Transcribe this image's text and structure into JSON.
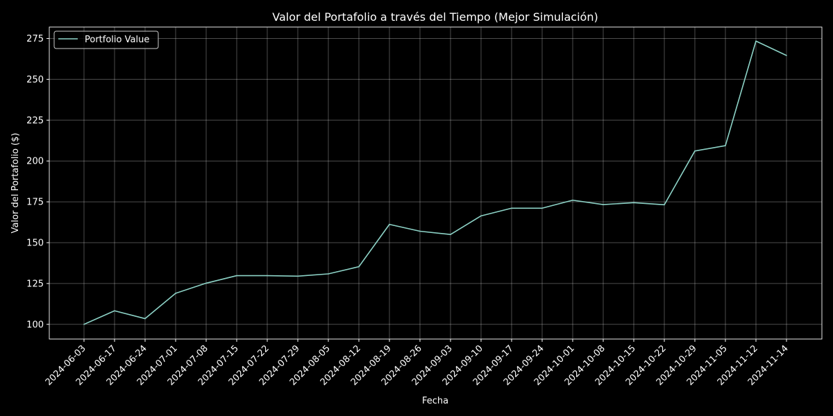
{
  "chart_data": {
    "type": "line",
    "title": "Valor del Portafolio a través del Tiempo (Mejor Simulación)",
    "xlabel": "Fecha",
    "ylabel": "Valor del Portafolio ($)",
    "grid": true,
    "legend_position": "top-left",
    "ylim": [
      91,
      282
    ],
    "yticks": [
      100,
      125,
      150,
      175,
      200,
      225,
      250,
      275
    ],
    "x": [
      "2024-06-03",
      "2024-06-17",
      "2024-06-24",
      "2024-07-01",
      "2024-07-08",
      "2024-07-15",
      "2024-07-22",
      "2024-07-29",
      "2024-08-05",
      "2024-08-12",
      "2024-08-19",
      "2024-08-26",
      "2024-09-03",
      "2024-09-10",
      "2024-09-17",
      "2024-09-24",
      "2024-10-01",
      "2024-10-08",
      "2024-10-15",
      "2024-10-22",
      "2024-10-29",
      "2024-11-05",
      "2024-11-12",
      "2024-11-14"
    ],
    "series": [
      {
        "name": "Portfolio Value",
        "color": "#8dd3c7",
        "values": [
          100.0,
          108.3,
          103.5,
          119.0,
          125.2,
          129.8,
          129.8,
          129.5,
          130.9,
          135.3,
          161.2,
          157.0,
          155.0,
          166.4,
          171.1,
          171.1,
          176.0,
          173.3,
          174.5,
          173.2,
          206.1,
          209.4,
          273.4,
          264.6
        ]
      }
    ]
  }
}
